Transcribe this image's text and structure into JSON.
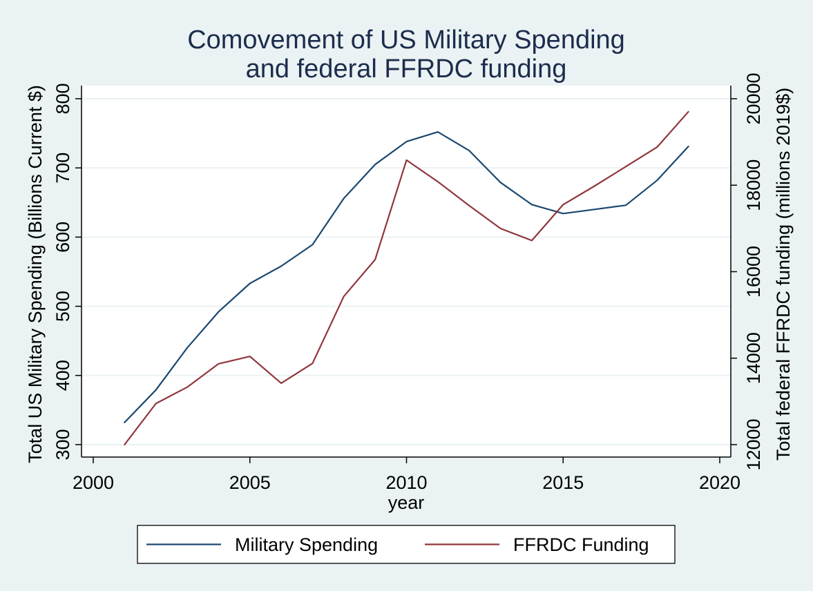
{
  "chart_data": {
    "type": "line",
    "title_lines": [
      "Comovement of US Military Spending",
      "and federal FFRDC funding"
    ],
    "xlabel": "year",
    "ylabel_left": "Total US Military Spending (Billions Current $)",
    "ylabel_right": "Total federal FFRDC funding (millions 2019$)",
    "xlim": [
      2000,
      2020
    ],
    "xticks": [
      2000,
      2005,
      2010,
      2015,
      2020
    ],
    "ylim_left": [
      300,
      800
    ],
    "yticks_left": [
      300,
      400,
      500,
      600,
      700,
      800
    ],
    "ylim_right": [
      12000,
      20000
    ],
    "yticks_right": [
      12000,
      14000,
      16000,
      18000,
      20000
    ],
    "grid": true,
    "legend_position": "bottom",
    "colors": {
      "background": "#eaf2f3",
      "plot_area": "#ffffff",
      "grid": "#eaf2f3",
      "title": "#1c2c4c",
      "military": "#1a476f",
      "ffrdc": "#90353b"
    },
    "series": [
      {
        "name": "Military Spending",
        "axis": "left",
        "x": [
          2001,
          2002,
          2003,
          2004,
          2005,
          2006,
          2007,
          2008,
          2009,
          2010,
          2011,
          2012,
          2013,
          2014,
          2015,
          2016,
          2017,
          2018,
          2019
        ],
        "y": [
          332,
          379,
          440,
          492,
          533,
          558,
          589,
          656,
          705,
          738,
          752,
          725,
          679,
          647,
          634,
          640,
          646,
          682,
          731
        ]
      },
      {
        "name": "FFRDC Funding",
        "axis": "right",
        "x": [
          2001,
          2002,
          2003,
          2004,
          2005,
          2006,
          2007,
          2008,
          2009,
          2010,
          2011,
          2012,
          2013,
          2014,
          2015,
          2016,
          2017,
          2018,
          2019
        ],
        "y": [
          12000,
          12950,
          13330,
          13870,
          14040,
          13420,
          13880,
          15430,
          16280,
          18580,
          18080,
          17530,
          17000,
          16720,
          17550,
          17980,
          18430,
          18880,
          19700
        ]
      }
    ]
  }
}
